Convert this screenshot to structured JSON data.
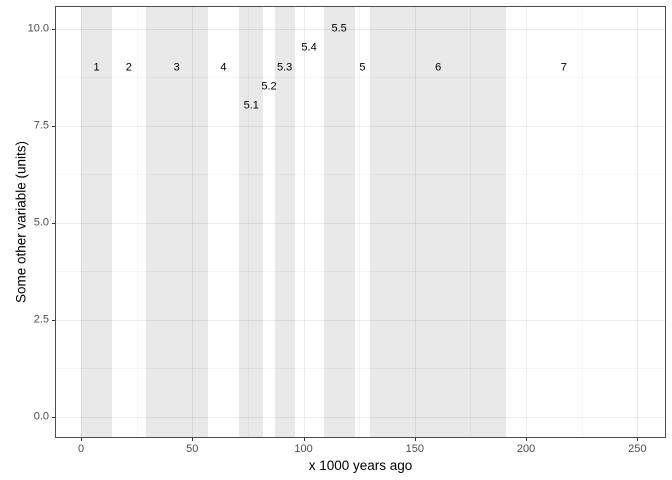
{
  "chart_data": {
    "type": "scatter",
    "subtype": "text-labels-with-shaded-x-bands",
    "title": "",
    "xlabel": "x 1000 years ago",
    "ylabel": "Some other variable (units)",
    "xlim": [
      -11.7,
      262.9
    ],
    "ylim": [
      -0.53,
      10.59
    ],
    "grid": "major and minor, light gray, white panel, black panel border (ggplot theme_bw)",
    "legend_position": "none",
    "x_ticks": [
      {
        "value": 0,
        "label": "0"
      },
      {
        "value": 50,
        "label": "50"
      },
      {
        "value": 100,
        "label": "100"
      },
      {
        "value": 150,
        "label": "150"
      },
      {
        "value": 200,
        "label": "200"
      },
      {
        "value": 250,
        "label": "250"
      }
    ],
    "y_ticks": [
      {
        "value": 0,
        "label": "0.0"
      },
      {
        "value": 2.5,
        "label": "2.5"
      },
      {
        "value": 5,
        "label": "5.0"
      },
      {
        "value": 7.5,
        "label": "7.5"
      },
      {
        "value": 10,
        "label": "10.0"
      }
    ],
    "shaded_x_bands": [
      {
        "from": 0,
        "to": 14,
        "stage": "1"
      },
      {
        "from": 29,
        "to": 57,
        "stage": "3"
      },
      {
        "from": 71,
        "to": 82,
        "stage": "5.1"
      },
      {
        "from": 87,
        "to": 96,
        "stage": "5.3"
      },
      {
        "from": 109,
        "to": 123,
        "stage": "5.5"
      },
      {
        "from": 130,
        "to": 191,
        "stage": "6"
      }
    ],
    "points": [
      {
        "label": "1",
        "x": 7,
        "y": 9
      },
      {
        "label": "2",
        "x": 21.5,
        "y": 9
      },
      {
        "label": "3",
        "x": 43,
        "y": 9
      },
      {
        "label": "4",
        "x": 64,
        "y": 9
      },
      {
        "label": "5.1",
        "x": 76.5,
        "y": 8
      },
      {
        "label": "5.2",
        "x": 84.5,
        "y": 8.5
      },
      {
        "label": "5.3",
        "x": 91.5,
        "y": 9
      },
      {
        "label": "5.4",
        "x": 102.5,
        "y": 9.5
      },
      {
        "label": "5.5",
        "x": 116,
        "y": 10
      },
      {
        "label": "5",
        "x": 126.5,
        "y": 9
      },
      {
        "label": "6",
        "x": 160.5,
        "y": 9
      },
      {
        "label": "7",
        "x": 217,
        "y": 9
      }
    ],
    "colors": {
      "band_fill": "#e9e9e9",
      "panel_background": "#ffffff",
      "panel_border": "#4d4d4d",
      "tick_text": "#4d4d4d",
      "label_text": "#000000"
    }
  }
}
